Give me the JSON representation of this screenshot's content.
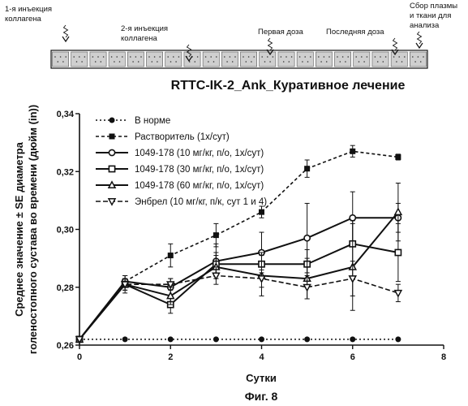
{
  "timeline": {
    "events": [
      {
        "lines": [
          "1-я инъекция",
          "коллагена"
        ],
        "day": 0
      },
      {
        "lines": [
          "2-я инъекция",
          "коллагена"
        ],
        "day": 2
      },
      {
        "lines": [
          "Первая доза"
        ],
        "day": 4
      },
      {
        "lines": [
          "Последняя доза"
        ],
        "day": 6
      },
      {
        "lines": [
          "Сбор плазмы",
          "и ткани для",
          "анализа"
        ],
        "day": 7
      }
    ]
  },
  "chart_data": {
    "type": "line",
    "title": "RTTC-IK-2_Ank_Куративное лечение",
    "xlabel": "Сутки",
    "ylabel_lines": [
      "Среднее значение ± SE диаметра",
      "голеностопного сустава во времени (дюйм (in))"
    ],
    "xlim": [
      0,
      8
    ],
    "ylim": [
      0.26,
      0.34
    ],
    "xticks": [
      "0",
      "2",
      "4",
      "6",
      "8"
    ],
    "yticks": [
      "0,26",
      "0,28",
      "0,30",
      "0,32",
      "0,34"
    ],
    "x": [
      0,
      1,
      2,
      3,
      4,
      5,
      6,
      7
    ],
    "legend_position": "top-left",
    "grid": false,
    "series": [
      {
        "name": "В норме",
        "marker": "circle-filled",
        "dash": "2,3",
        "values": [
          0.262,
          0.262,
          0.262,
          0.262,
          0.262,
          0.262,
          0.262,
          0.262
        ],
        "errors": [
          0,
          0,
          0,
          0,
          0,
          0,
          0,
          0
        ]
      },
      {
        "name": "Растворитель (1х/сут)",
        "marker": "square-filled",
        "dash": "4,3",
        "values": [
          0.262,
          0.282,
          0.291,
          0.298,
          0.306,
          0.321,
          0.327,
          0.325
        ],
        "errors": [
          0,
          0.002,
          0.004,
          0.004,
          0.002,
          0.003,
          0.002,
          0.001
        ]
      },
      {
        "name": "1049-178 (10 мг/кг, п/о, 1х/сут)",
        "marker": "circle-open",
        "dash": "",
        "values": [
          0.262,
          0.282,
          0.28,
          0.289,
          0.292,
          0.297,
          0.304,
          0.304
        ],
        "errors": [
          0,
          0.002,
          0.003,
          0.006,
          0.007,
          0.012,
          0.009,
          0.005
        ]
      },
      {
        "name": "1049-178 (30 мг/кг, п/о, 1х/сут)",
        "marker": "square-open",
        "dash": "",
        "values": [
          0.262,
          0.281,
          0.274,
          0.288,
          0.288,
          0.288,
          0.295,
          0.292
        ],
        "errors": [
          0,
          0.002,
          0.003,
          0.004,
          0.004,
          0.005,
          0.008,
          0.01
        ]
      },
      {
        "name": "1049-178 (60 мг/кг, п/о, 1х/сут)",
        "marker": "triangle-up-open",
        "dash": "",
        "values": [
          0.262,
          0.281,
          0.277,
          0.287,
          0.284,
          0.283,
          0.287,
          0.306
        ],
        "errors": [
          0,
          0.003,
          0.003,
          0.004,
          0.007,
          0.007,
          0.015,
          0.01
        ]
      },
      {
        "name": "Энбрел (10 мг/кг, п/к, сут 1 и 4)",
        "marker": "triangle-down-open",
        "dash": "6,3",
        "values": [
          0.262,
          0.281,
          0.281,
          0.284,
          0.283,
          0.28,
          0.283,
          0.278
        ],
        "errors": [
          0,
          0.002,
          0.002,
          0.003,
          0.003,
          0.004,
          0.006,
          0.003
        ]
      }
    ]
  },
  "caption": "Фиг. 8"
}
